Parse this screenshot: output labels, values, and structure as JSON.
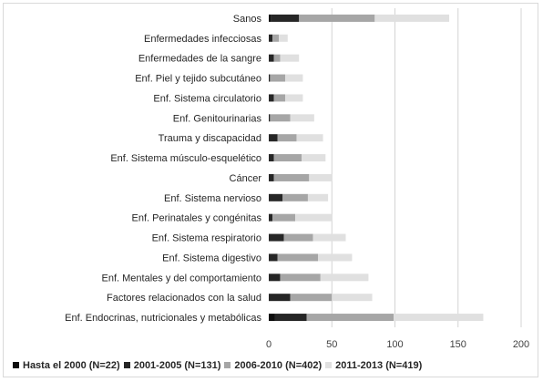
{
  "chart_data": {
    "type": "bar",
    "orientation": "horizontal",
    "stacked": true,
    "title": "",
    "xlabel": "",
    "ylabel": "",
    "xlim": [
      0,
      200
    ],
    "xticks": [
      0,
      50,
      100,
      150,
      200
    ],
    "grid": true,
    "legend_position": "bottom",
    "categories": [
      "Sanos",
      "Enfermedades infecciosas",
      "Enfermedades de la sangre",
      "Enf. Piel y tejido subcutáneo",
      "Enf. Sistema circulatorio",
      "Enf. Genitourinarias",
      "Trauma y discapacidad",
      "Enf. Sistema músculo-esquelético",
      "Cáncer",
      "Enf. Sistema nervioso",
      "Enf. Perinatales y congénitas",
      "Enf. Sistema respiratorio",
      "Enf. Sistema digestivo",
      "Enf. Mentales y del comportamiento",
      "Factores relacionados con la salud",
      "Enf. Endocrinas, nutricionales y metabólicas"
    ],
    "series": [
      {
        "name": "Hasta  el 2000 (N=22)",
        "color": "#0d0d0d",
        "values": [
          2,
          0,
          0,
          0,
          0,
          0,
          0,
          0,
          0,
          0,
          0,
          0,
          0,
          0,
          0,
          5
        ]
      },
      {
        "name": "2001-2005 (N=131)",
        "color": "#262626",
        "values": [
          22,
          3,
          4,
          1,
          4,
          1,
          7,
          4,
          4,
          11,
          3,
          12,
          7,
          9,
          17,
          25
        ]
      },
      {
        "name": "2006-2010 (N=402)",
        "color": "#a6a6a6",
        "values": [
          60,
          5,
          5,
          12,
          9,
          16,
          15,
          22,
          28,
          20,
          18,
          23,
          32,
          32,
          33,
          69
        ]
      },
      {
        "name": "2011-2013 (N=419)",
        "color": "#e0e0e0",
        "values": [
          59,
          7,
          15,
          14,
          14,
          19,
          21,
          19,
          18,
          16,
          29,
          26,
          27,
          38,
          32,
          71
        ]
      }
    ]
  }
}
